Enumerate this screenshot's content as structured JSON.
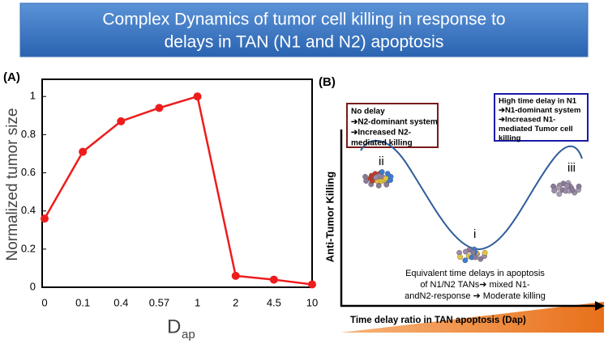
{
  "title": [
    "Complex Dynamics of tumor cell killing in response to",
    "delays in TAN (N1 and N2) apoptosis"
  ],
  "chart_data": {
    "type": "line",
    "panel_label": "(A)",
    "categories": [
      "0",
      "0.1",
      "0.4",
      "0.57",
      "1",
      "2",
      "4.5",
      "10"
    ],
    "series": [
      {
        "color": "#ee1c1c",
        "values": [
          0.36,
          0.71,
          0.87,
          0.94,
          1.0,
          0.06,
          0.04,
          0.015
        ]
      }
    ],
    "ylim": [
      0,
      1.09
    ],
    "yticks": [
      0,
      0.2,
      0.4,
      0.6,
      0.8,
      1
    ],
    "ylabel": "Normalized tumor size",
    "xlabel": "D",
    "xlabel_sub": "ap"
  },
  "panel_b": {
    "label": "(B)",
    "box_left": [
      "No delay",
      "➔N2-dominant system",
      "➔Increased N2-",
      "mediated killing"
    ],
    "box_right": [
      "High time delay in N1",
      "➔N1-dominant system",
      "➔Increased N1-",
      "mediated Tumor cell",
      "killing"
    ],
    "y_axis_label": "Anti-Tumor  Killing",
    "x_axis_label": "Time delay ratio in TAN apoptosis (Dap)",
    "points": [
      "ii",
      "i",
      "iii"
    ],
    "caption": [
      "Equivalent time delays in apoptosis",
      "of N1/N2 TANs➔ mixed N1-",
      "andN2-response ➔ Moderate killing"
    ]
  }
}
